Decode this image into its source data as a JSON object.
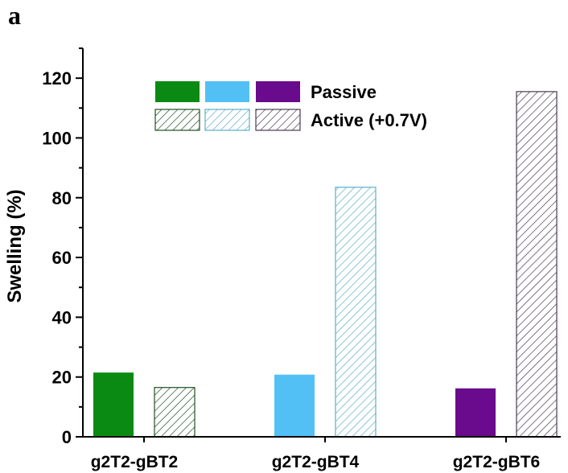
{
  "panel_label": "a",
  "chart_data": {
    "type": "bar",
    "categories": [
      "g2T2-gBT2",
      "g2T2-gBT4",
      "g2T2-gBT6"
    ],
    "series": [
      {
        "name": "Passive",
        "values": [
          21.5,
          20.8,
          16.2
        ],
        "fill": "solid",
        "colors": [
          "#0a8a12",
          "#52c0f5",
          "#6a0a8c"
        ]
      },
      {
        "name": "Active (+0.7V)",
        "values": [
          16.5,
          83.5,
          115.5
        ],
        "fill": "hatched",
        "colors": [
          "#1f4f22",
          "#5ab0c8",
          "#4a3a4f"
        ]
      }
    ],
    "title": "",
    "xlabel": "",
    "ylabel": "Swelling (%)",
    "ylim": [
      0,
      130
    ],
    "yticks": [
      0,
      20,
      40,
      60,
      80,
      100,
      120
    ],
    "yminor_step": 10,
    "grid": false,
    "legend_position": "top-center"
  }
}
